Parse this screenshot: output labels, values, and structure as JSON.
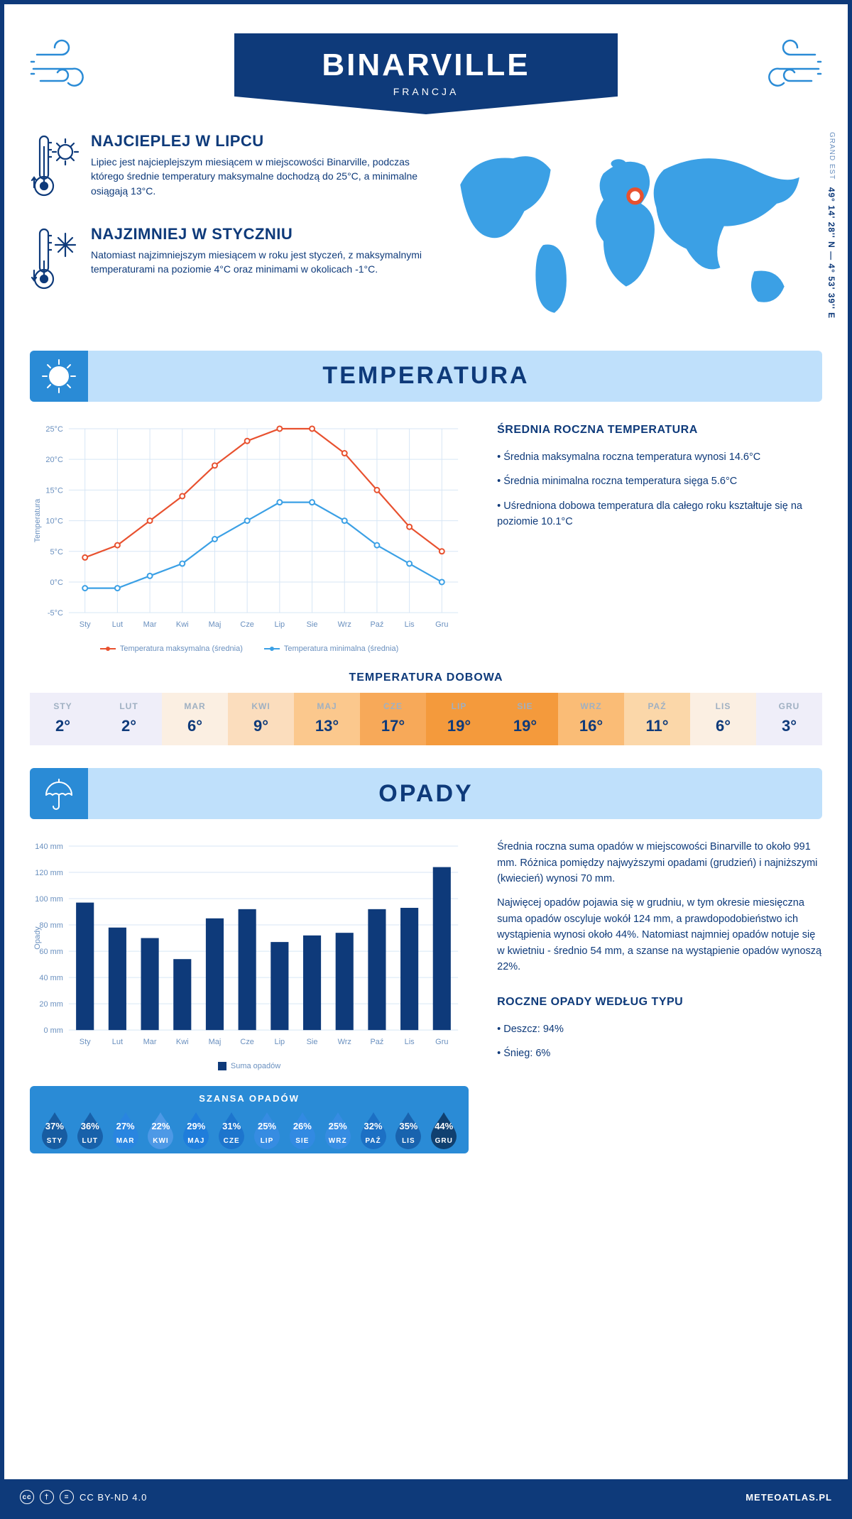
{
  "header": {
    "city": "BINARVILLE",
    "country": "FRANCJA",
    "coords": "49° 14' 28'' N — 4° 53' 39'' E",
    "region": "GRAND EST"
  },
  "colors": {
    "brand": "#0e3a7a",
    "accent": "#2a8bd6",
    "lightBand": "#bfe0fb",
    "worldMap": "#3ba0e5",
    "pin": "#e8512f",
    "tempMaxLine": "#e8512f",
    "tempMinLine": "#3ba0e5",
    "grid": "#d7e6f5",
    "barFill": "#0e3a7a"
  },
  "info": {
    "warmest": {
      "title": "NAJCIEPLEJ W LIPCU",
      "text": "Lipiec jest najcieplejszym miesiącem w miejscowości Binarville, podczas którego średnie temperatury maksymalne dochodzą do 25°C, a minimalne osiągają 13°C."
    },
    "coldest": {
      "title": "NAJZIMNIEJ W STYCZNIU",
      "text": "Natomiast najzimniejszym miesiącem w roku jest styczeń, z maksymalnymi temperaturami na poziomie 4°C oraz minimami w okolicach -1°C."
    }
  },
  "months": [
    "Sty",
    "Lut",
    "Mar",
    "Kwi",
    "Maj",
    "Cze",
    "Lip",
    "Sie",
    "Wrz",
    "Paź",
    "Lis",
    "Gru"
  ],
  "monthsUpper": [
    "STY",
    "LUT",
    "MAR",
    "KWI",
    "MAJ",
    "CZE",
    "LIP",
    "SIE",
    "WRZ",
    "PAŹ",
    "LIS",
    "GRU"
  ],
  "temperature": {
    "sectionTitle": "TEMPERATURA",
    "yAxisLabel": "Temperatura",
    "ylim": [
      -5,
      25
    ],
    "ytickStep": 5,
    "max": [
      4,
      6,
      10,
      14,
      19,
      23,
      25,
      25,
      21,
      15,
      9,
      5
    ],
    "min": [
      -1,
      -1,
      1,
      3,
      7,
      10,
      13,
      13,
      10,
      6,
      3,
      0
    ],
    "legendMax": "Temperatura maksymalna (średnia)",
    "legendMin": "Temperatura minimalna (średnia)",
    "annual": {
      "title": "ŚREDNIA ROCZNA TEMPERATURA",
      "bullets": [
        "Średnia maksymalna roczna temperatura wynosi 14.6°C",
        "Średnia minimalna roczna temperatura sięga 5.6°C",
        "Uśredniona dobowa temperatura dla całego roku kształtuje się na poziomie 10.1°C"
      ]
    },
    "dailyTitle": "TEMPERATURA DOBOWA",
    "daily": [
      2,
      2,
      6,
      9,
      13,
      17,
      19,
      19,
      16,
      11,
      6,
      3
    ],
    "dailyBg": [
      "#efeef9",
      "#efeef9",
      "#fbefe2",
      "#fbddbd",
      "#fbc88d",
      "#f7a959",
      "#f49a3c",
      "#f49a3c",
      "#fabc76",
      "#fbd7a9",
      "#fbefe2",
      "#efeef9"
    ]
  },
  "precipitation": {
    "sectionTitle": "OPADY",
    "yAxisLabel": "Opady",
    "ylim": [
      0,
      140
    ],
    "ytickStep": 20,
    "values": [
      97,
      78,
      70,
      54,
      85,
      92,
      67,
      72,
      74,
      92,
      93,
      124
    ],
    "legend": "Suma opadów",
    "text1": "Średnia roczna suma opadów w miejscowości Binarville to około 991 mm. Różnica pomiędzy najwyższymi opadami (grudzień) i najniższymi (kwiecień) wynosi 70 mm.",
    "text2": "Najwięcej opadów pojawia się w grudniu, w tym okresie miesięczna suma opadów oscyluje wokół 124 mm, a prawdopodobieństwo ich wystąpienia wynosi około 44%. Natomiast najmniej opadów notuje się w kwietniu - średnio 54 mm, a szanse na wystąpienie opadów wynoszą 22%.",
    "chanceTitle": "SZANSA OPADÓW",
    "chance": [
      37,
      36,
      27,
      22,
      29,
      31,
      25,
      26,
      25,
      32,
      35,
      44
    ],
    "typeTitle": "ROCZNE OPADY WEDŁUG TYPU",
    "typeBullets": [
      "Deszcz: 94%",
      "Śnieg: 6%"
    ]
  },
  "footer": {
    "license": "CC BY-ND 4.0",
    "site": "METEOATLAS.PL"
  }
}
